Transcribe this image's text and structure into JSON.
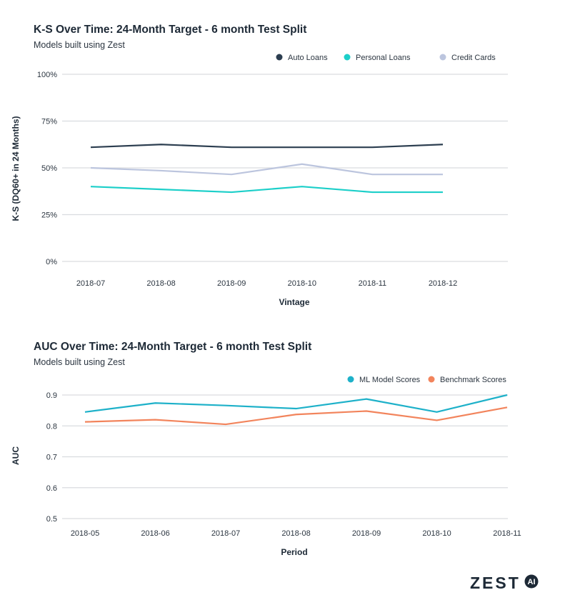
{
  "chart_data": [
    {
      "type": "line",
      "title": "K-S Over Time: 24-Month Target - 6 month Test Split",
      "subtitle": "Models built using Zest",
      "xlabel": "Vintage",
      "ylabel": "K-S (DQ60+ in 24 Months)",
      "categories": [
        "2018-07",
        "2018-08",
        "2018-09",
        "2018-10",
        "2018-11",
        "2018-12"
      ],
      "ylim": [
        0,
        100
      ],
      "yticks": [
        0,
        25,
        50,
        75,
        100
      ],
      "ytick_labels": [
        "0%",
        "25%",
        "50%",
        "75%",
        "100%"
      ],
      "grid": true,
      "legend_position": "top-right",
      "series": [
        {
          "name": "Auto Loans",
          "color": "#2c3e50",
          "values": [
            61,
            62.5,
            61,
            61,
            61,
            62.5
          ]
        },
        {
          "name": "Personal Loans",
          "color": "#1ccfc9",
          "values": [
            40,
            38.5,
            37,
            40,
            37,
            37
          ]
        },
        {
          "name": "Credit Cards",
          "color": "#bcc5de",
          "values": [
            50,
            48.5,
            46.5,
            52,
            46.5,
            46.5
          ]
        }
      ]
    },
    {
      "type": "line",
      "title": "AUC Over Time: 24-Month Target - 6 month Test Split",
      "subtitle": "Models built using Zest",
      "xlabel": "Period",
      "ylabel": "AUC",
      "categories": [
        "2018-05",
        "2018-06",
        "2018-07",
        "2018-08",
        "2018-09",
        "2018-10",
        "2018-11"
      ],
      "ylim": [
        0.5,
        0.9
      ],
      "yticks": [
        0.5,
        0.6,
        0.7,
        0.8,
        0.9
      ],
      "ytick_labels": [
        "0.5",
        "0.6",
        "0.7",
        "0.8",
        "0.9"
      ],
      "grid": true,
      "legend_position": "top-right",
      "series": [
        {
          "name": "ML Model Scores",
          "color": "#1eb1c9",
          "values": [
            0.845,
            0.874,
            0.866,
            0.856,
            0.887,
            0.845,
            0.9
          ]
        },
        {
          "name": "Benchmark Scores",
          "color": "#f2845c",
          "values": [
            0.813,
            0.82,
            0.805,
            0.837,
            0.848,
            0.818,
            0.86
          ]
        }
      ]
    }
  ],
  "logo": {
    "text": "ZEST",
    "badge": "AI",
    "color": "#1d2936"
  }
}
